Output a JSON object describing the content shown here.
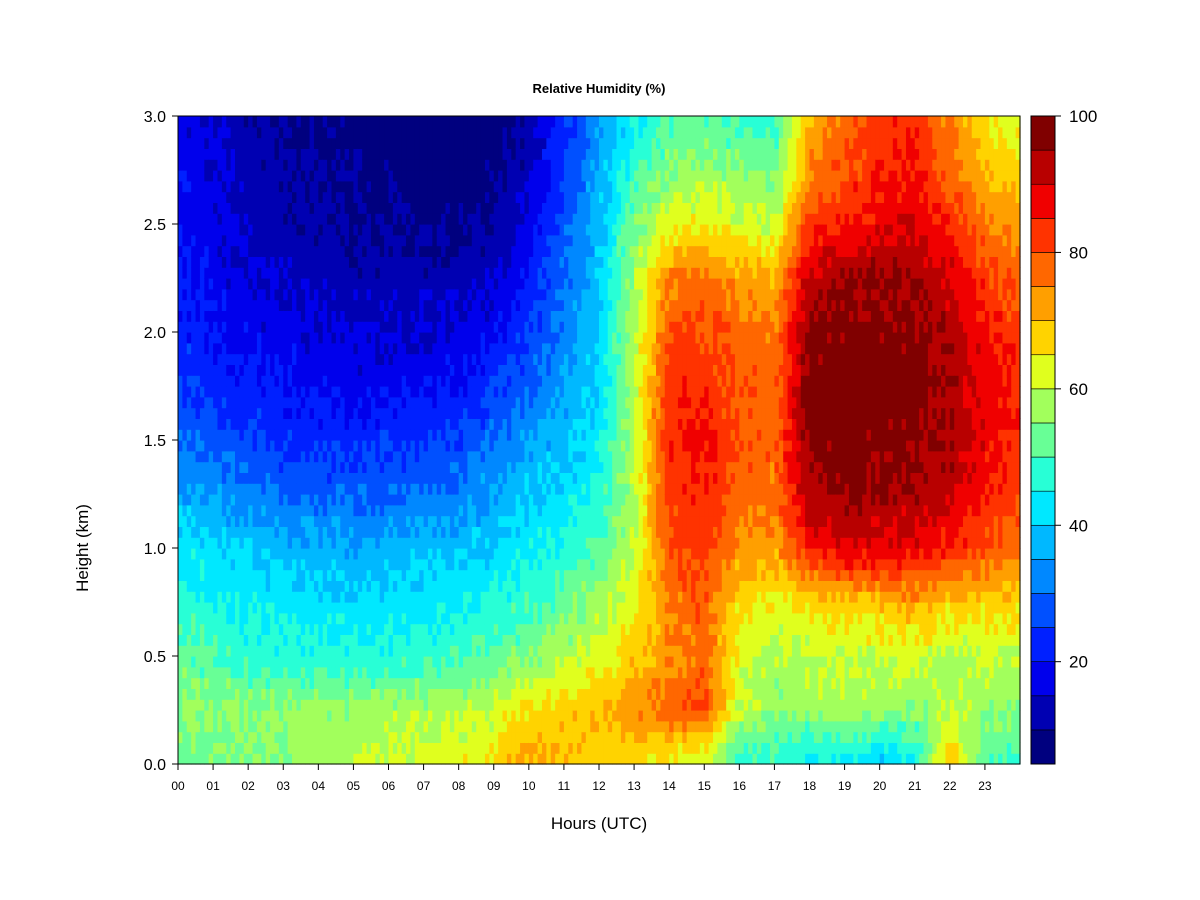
{
  "chart_data": {
    "type": "heatmap",
    "title": "Relative Humidity (%)",
    "xlabel": "Hours (UTC)",
    "ylabel": "Height (km)",
    "xlim": [
      0,
      24
    ],
    "ylim": [
      0,
      3
    ],
    "x_tick_labels": [
      "00",
      "01",
      "02",
      "03",
      "04",
      "05",
      "06",
      "07",
      "08",
      "09",
      "10",
      "11",
      "12",
      "13",
      "14",
      "15",
      "16",
      "17",
      "18",
      "19",
      "20",
      "21",
      "22",
      "23"
    ],
    "y_tick_labels": [
      "0.0",
      "0.5",
      "1.0",
      "1.5",
      "2.0",
      "2.5",
      "3.0"
    ],
    "colorbar": {
      "range": [
        5,
        100
      ],
      "levels": [
        5,
        10,
        15,
        20,
        25,
        30,
        35,
        40,
        45,
        50,
        55,
        60,
        65,
        70,
        75,
        80,
        85,
        90,
        95,
        100
      ],
      "tick_values": [
        20,
        40,
        60,
        80,
        100
      ],
      "tick_labels": [
        "20",
        "40",
        "60",
        "80",
        "100"
      ],
      "colors": [
        "#00007f",
        "#0000b2",
        "#0000ec",
        "#0020ff",
        "#0050ff",
        "#0088ff",
        "#00b8ff",
        "#00e8ff",
        "#28ffd6",
        "#68ff96",
        "#a2ff5c",
        "#e0ff1e",
        "#ffd300",
        "#ff9f00",
        "#ff6700",
        "#ff3300",
        "#f00000",
        "#b80000",
        "#800000"
      ]
    },
    "heights": [
      0.0,
      0.25,
      0.5,
      0.75,
      1.0,
      1.25,
      1.5,
      1.75,
      2.0,
      2.25,
      2.5,
      2.75,
      3.0
    ],
    "hours": [
      0,
      1,
      2,
      3,
      4,
      5,
      6,
      7,
      8,
      9,
      10,
      11,
      12,
      13,
      14,
      15,
      16,
      17,
      18,
      19,
      20,
      21,
      22,
      23,
      24
    ],
    "rh_by_hour": [
      [
        52,
        55,
        52,
        48,
        43,
        36,
        30,
        25,
        23,
        21,
        20,
        19,
        18
      ],
      [
        54,
        56,
        50,
        46,
        42,
        34,
        28,
        23,
        20,
        18,
        17,
        16,
        15
      ],
      [
        55,
        56,
        48,
        44,
        40,
        32,
        26,
        21,
        18,
        16,
        14,
        13,
        12
      ],
      [
        56,
        56,
        47,
        43,
        38,
        30,
        24,
        20,
        17,
        14,
        12,
        11,
        10
      ],
      [
        58,
        57,
        46,
        42,
        37,
        29,
        23,
        19,
        16,
        13,
        11,
        10,
        9
      ],
      [
        59,
        57,
        46,
        42,
        36,
        29,
        23,
        18,
        15,
        12,
        10,
        9,
        8
      ],
      [
        61,
        58,
        47,
        42,
        37,
        30,
        24,
        18,
        15,
        12,
        10,
        8,
        7
      ],
      [
        62,
        58,
        48,
        43,
        38,
        31,
        25,
        19,
        15,
        12,
        9,
        7,
        6
      ],
      [
        63,
        59,
        49,
        44,
        39,
        32,
        26,
        20,
        16,
        12,
        9,
        7,
        6
      ],
      [
        66,
        61,
        51,
        46,
        41,
        36,
        30,
        24,
        19,
        15,
        11,
        8,
        7
      ],
      [
        72,
        66,
        55,
        49,
        44,
        40,
        35,
        29,
        25,
        21,
        17,
        13,
        11
      ],
      [
        70,
        68,
        58,
        52,
        46,
        42,
        38,
        35,
        32,
        30,
        28,
        25,
        23
      ],
      [
        67,
        70,
        62,
        57,
        51,
        47,
        44,
        41,
        40,
        39,
        38,
        36,
        34
      ],
      [
        66,
        74,
        68,
        63,
        60,
        59,
        59,
        59,
        59,
        57,
        54,
        48,
        44
      ],
      [
        62,
        78,
        74,
        75,
        80,
        82,
        84,
        83,
        80,
        75,
        62,
        55,
        50
      ],
      [
        60,
        80,
        78,
        79,
        83,
        85,
        86,
        84,
        81,
        77,
        65,
        57,
        51
      ],
      [
        46,
        60,
        62,
        66,
        74,
        78,
        80,
        79,
        78,
        72,
        62,
        55,
        48
      ],
      [
        48,
        56,
        58,
        64,
        72,
        76,
        78,
        77,
        76,
        70,
        60,
        54,
        47
      ],
      [
        42,
        56,
        60,
        66,
        86,
        94,
        97,
        98,
        96,
        92,
        82,
        74,
        70
      ],
      [
        44,
        58,
        60,
        68,
        90,
        96,
        98,
        98,
        97,
        95,
        86,
        80,
        78
      ],
      [
        40,
        56,
        60,
        70,
        88,
        95,
        97,
        98,
        97,
        95,
        88,
        84,
        82
      ],
      [
        45,
        54,
        62,
        72,
        88,
        94,
        96,
        97,
        96,
        94,
        90,
        86,
        84
      ],
      [
        70,
        60,
        58,
        68,
        84,
        92,
        94,
        94,
        93,
        90,
        84,
        78,
        74
      ],
      [
        50,
        56,
        60,
        68,
        80,
        86,
        88,
        88,
        86,
        82,
        76,
        70,
        66
      ],
      [
        48,
        55,
        60,
        66,
        76,
        82,
        84,
        84,
        82,
        78,
        72,
        66,
        62
      ]
    ]
  }
}
